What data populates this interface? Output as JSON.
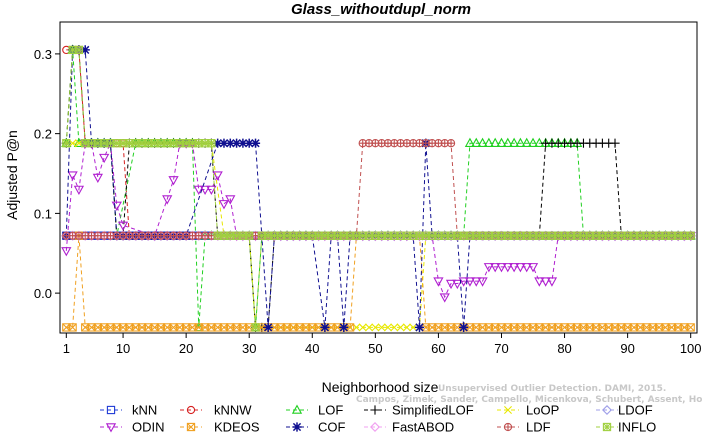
{
  "chart_data": {
    "type": "line",
    "title": "Glass_withoutdupl_norm",
    "xlabel": "Neighborhood size",
    "ylabel": "Adjusted P@n",
    "xlim": [
      0,
      101
    ],
    "ylim": [
      -0.05,
      0.34
    ],
    "xticks": [
      1,
      10,
      20,
      30,
      40,
      50,
      60,
      70,
      80,
      90,
      100
    ],
    "yticks": [
      0.0,
      0.1,
      0.2,
      0.3
    ],
    "ytick_labels": [
      "0.0",
      "0.1",
      "0.2",
      "0.3"
    ],
    "grid": false,
    "legend_position": "bottom",
    "watermark": "Campos, Zimek, Sander, Campello, Micenkova, Schubert, Assent, Houle",
    "watermark_line1": "Unsupervised Outlier Detection. DAMI, 2015.",
    "series": [
      {
        "name": "kNN",
        "color": "#1f3bd6",
        "marker": "square",
        "points": [
          [
            1,
            0.072
          ],
          [
            2,
            0.072
          ],
          [
            3,
            0.072
          ],
          [
            4,
            0.072
          ],
          [
            5,
            0.072
          ],
          [
            6,
            0.072
          ],
          [
            7,
            0.072
          ],
          [
            8,
            0.072
          ],
          [
            9,
            0.072
          ],
          [
            10,
            0.072
          ],
          [
            15,
            0.072
          ],
          [
            20,
            0.072
          ],
          [
            30,
            0.072
          ],
          [
            40,
            0.072
          ],
          [
            50,
            0.072
          ],
          [
            60,
            0.072
          ],
          [
            70,
            0.072
          ],
          [
            80,
            0.072
          ],
          [
            90,
            0.072
          ],
          [
            100,
            0.072
          ]
        ]
      },
      {
        "name": "kNNW",
        "color": "#d62020",
        "marker": "circle",
        "points": [
          [
            1,
            0.305
          ],
          [
            2,
            0.305
          ],
          [
            3,
            0.305
          ],
          [
            4,
            0.188
          ],
          [
            5,
            0.188
          ],
          [
            6,
            0.188
          ],
          [
            7,
            0.188
          ],
          [
            8,
            0.188
          ],
          [
            9,
            0.188
          ],
          [
            10,
            0.188
          ],
          [
            11,
            0.072
          ],
          [
            12,
            0.072
          ],
          [
            20,
            0.072
          ],
          [
            30,
            0.072
          ],
          [
            40,
            0.072
          ],
          [
            50,
            0.072
          ],
          [
            60,
            0.072
          ],
          [
            70,
            0.072
          ],
          [
            80,
            0.072
          ],
          [
            90,
            0.072
          ],
          [
            100,
            0.072
          ]
        ]
      },
      {
        "name": "LOF",
        "color": "#20d020",
        "marker": "triangle",
        "points": [
          [
            1,
            0.188
          ],
          [
            2,
            0.305
          ],
          [
            3,
            0.188
          ],
          [
            4,
            0.188
          ],
          [
            5,
            0.188
          ],
          [
            6,
            0.188
          ],
          [
            7,
            0.188
          ],
          [
            8,
            0.188
          ],
          [
            9,
            0.072
          ],
          [
            12,
            0.188
          ],
          [
            20,
            0.188
          ],
          [
            21,
            0.188
          ],
          [
            22,
            -0.043
          ],
          [
            23,
            0.072
          ],
          [
            30,
            0.072
          ],
          [
            31,
            -0.043
          ],
          [
            32,
            0.072
          ],
          [
            40,
            0.072
          ],
          [
            50,
            0.072
          ],
          [
            60,
            0.072
          ],
          [
            62,
            0.072
          ],
          [
            64,
            0.072
          ],
          [
            65,
            0.188
          ],
          [
            66,
            0.188
          ],
          [
            70,
            0.188
          ],
          [
            75,
            0.188
          ],
          [
            80,
            0.188
          ],
          [
            82,
            0.188
          ],
          [
            83,
            0.072
          ],
          [
            90,
            0.072
          ],
          [
            100,
            0.072
          ]
        ]
      },
      {
        "name": "SimplifiedLOF",
        "color": "#000000",
        "marker": "plus",
        "points": [
          [
            1,
            0.188
          ],
          [
            2,
            0.305
          ],
          [
            3,
            0.305
          ],
          [
            4,
            0.188
          ],
          [
            8,
            0.188
          ],
          [
            9,
            0.072
          ],
          [
            10,
            0.072
          ],
          [
            11,
            0.188
          ],
          [
            20,
            0.188
          ],
          [
            24,
            0.188
          ],
          [
            25,
            0.072
          ],
          [
            30,
            0.072
          ],
          [
            31,
            -0.043
          ],
          [
            32,
            -0.043
          ],
          [
            33,
            -0.043
          ],
          [
            34,
            0.072
          ],
          [
            50,
            0.072
          ],
          [
            60,
            0.072
          ],
          [
            63,
            0.072
          ],
          [
            64,
            0.072
          ],
          [
            66,
            0.072
          ],
          [
            76,
            0.072
          ],
          [
            77,
            0.188
          ],
          [
            88,
            0.188
          ],
          [
            89,
            0.072
          ],
          [
            100,
            0.072
          ]
        ]
      },
      {
        "name": "LoOP",
        "color": "#e8e800",
        "marker": "x",
        "points": [
          [
            1,
            0.188
          ],
          [
            5,
            0.188
          ],
          [
            10,
            0.188
          ],
          [
            20,
            0.188
          ],
          [
            24,
            0.188
          ],
          [
            26,
            0.072
          ],
          [
            30,
            0.072
          ],
          [
            31,
            -0.043
          ],
          [
            32,
            -0.043
          ],
          [
            33,
            -0.043
          ],
          [
            38,
            -0.043
          ],
          [
            40,
            -0.043
          ],
          [
            50,
            -0.043
          ],
          [
            57,
            -0.043
          ],
          [
            58,
            0.072
          ],
          [
            70,
            0.072
          ],
          [
            80,
            0.072
          ],
          [
            90,
            0.072
          ],
          [
            100,
            0.072
          ]
        ]
      },
      {
        "name": "LDOF",
        "color": "#9f9fe8",
        "marker": "diamond",
        "points": [
          [
            1,
            0.072
          ],
          [
            10,
            0.072
          ],
          [
            20,
            0.072
          ],
          [
            30,
            0.072
          ],
          [
            40,
            0.072
          ],
          [
            50,
            0.072
          ],
          [
            60,
            0.072
          ],
          [
            70,
            0.072
          ],
          [
            80,
            0.072
          ],
          [
            90,
            0.072
          ],
          [
            100,
            0.072
          ]
        ]
      },
      {
        "name": "ODIN",
        "color": "#b020d0",
        "marker": "triangle-down",
        "points": [
          [
            1,
            0.053
          ],
          [
            2,
            0.148
          ],
          [
            3,
            0.13
          ],
          [
            4,
            0.188
          ],
          [
            5,
            0.188
          ],
          [
            6,
            0.145
          ],
          [
            7,
            0.17
          ],
          [
            8,
            0.188
          ],
          [
            9,
            0.11
          ],
          [
            10,
            0.085
          ],
          [
            15,
            0.072
          ],
          [
            17,
            0.118
          ],
          [
            18,
            0.142
          ],
          [
            19,
            0.188
          ],
          [
            20,
            0.188
          ],
          [
            21,
            0.188
          ],
          [
            22,
            0.13
          ],
          [
            23,
            0.13
          ],
          [
            24,
            0.13
          ],
          [
            25,
            0.148
          ],
          [
            26,
            0.112
          ],
          [
            27,
            0.118
          ],
          [
            28,
            0.072
          ],
          [
            50,
            0.072
          ],
          [
            59,
            0.072
          ],
          [
            60,
            0.015
          ],
          [
            61,
            -0.005
          ],
          [
            62,
            0.012
          ],
          [
            63,
            0.012
          ],
          [
            64,
            0.015
          ],
          [
            65,
            0.015
          ],
          [
            66,
            0.015
          ],
          [
            67,
            0.015
          ],
          [
            68,
            0.033
          ],
          [
            69,
            0.033
          ],
          [
            70,
            0.033
          ],
          [
            71,
            0.033
          ],
          [
            72,
            0.033
          ],
          [
            73,
            0.033
          ],
          [
            74,
            0.033
          ],
          [
            75,
            0.033
          ],
          [
            76,
            0.015
          ],
          [
            77,
            0.015
          ],
          [
            78,
            0.015
          ],
          [
            79,
            0.072
          ],
          [
            80,
            0.072
          ],
          [
            90,
            0.072
          ],
          [
            100,
            0.072
          ]
        ]
      },
      {
        "name": "KDEOS",
        "color": "#f0a020",
        "marker": "square-x",
        "points": [
          [
            1,
            -0.043
          ],
          [
            2,
            -0.043
          ],
          [
            3,
            0.072
          ],
          [
            4,
            -0.043
          ],
          [
            10,
            -0.043
          ],
          [
            20,
            -0.043
          ],
          [
            30,
            -0.043
          ],
          [
            40,
            -0.043
          ],
          [
            46,
            -0.043
          ],
          [
            47,
            0.072
          ],
          [
            57,
            0.072
          ],
          [
            58,
            -0.043
          ],
          [
            70,
            -0.043
          ],
          [
            80,
            -0.043
          ],
          [
            90,
            -0.043
          ],
          [
            100,
            -0.043
          ]
        ]
      },
      {
        "name": "COF",
        "color": "#101090",
        "marker": "star",
        "points": [
          [
            1,
            0.072
          ],
          [
            2,
            0.305
          ],
          [
            3,
            0.305
          ],
          [
            4,
            0.305
          ],
          [
            5,
            0.188
          ],
          [
            8,
            0.188
          ],
          [
            9,
            0.072
          ],
          [
            20,
            0.072
          ],
          [
            25,
            0.188
          ],
          [
            31,
            0.188
          ],
          [
            32,
            0.072
          ],
          [
            33,
            -0.043
          ],
          [
            34,
            0.072
          ],
          [
            35,
            0.072
          ],
          [
            36,
            0.072
          ],
          [
            40,
            0.072
          ],
          [
            42,
            -0.043
          ],
          [
            43,
            0.072
          ],
          [
            44,
            0.072
          ],
          [
            45,
            -0.043
          ],
          [
            46,
            0.072
          ],
          [
            56,
            0.072
          ],
          [
            57,
            -0.043
          ],
          [
            58,
            0.188
          ],
          [
            59,
            0.072
          ],
          [
            60,
            0.072
          ],
          [
            63,
            0.072
          ],
          [
            64,
            -0.043
          ],
          [
            65,
            0.072
          ],
          [
            70,
            0.072
          ],
          [
            80,
            0.072
          ],
          [
            90,
            0.072
          ],
          [
            100,
            0.072
          ]
        ]
      },
      {
        "name": "FastABOD",
        "color": "#f0a0f0",
        "marker": "diamond",
        "points": [
          [
            1,
            0.072
          ],
          [
            10,
            0.072
          ],
          [
            20,
            0.072
          ],
          [
            30,
            0.072
          ],
          [
            40,
            0.072
          ],
          [
            50,
            0.072
          ],
          [
            60,
            0.072
          ],
          [
            70,
            0.072
          ],
          [
            80,
            0.072
          ],
          [
            90,
            0.072
          ],
          [
            100,
            0.072
          ]
        ]
      },
      {
        "name": "LDF",
        "color": "#c05050",
        "marker": "circle-plus",
        "points": [
          [
            1,
            0.072
          ],
          [
            10,
            0.072
          ],
          [
            20,
            0.072
          ],
          [
            30,
            0.072
          ],
          [
            40,
            0.072
          ],
          [
            47,
            0.072
          ],
          [
            48,
            0.188
          ],
          [
            50,
            0.188
          ],
          [
            55,
            0.188
          ],
          [
            60,
            0.188
          ],
          [
            62,
            0.188
          ],
          [
            63,
            0.072
          ],
          [
            70,
            0.072
          ],
          [
            80,
            0.072
          ],
          [
            90,
            0.072
          ],
          [
            100,
            0.072
          ]
        ]
      },
      {
        "name": "INFLO",
        "color": "#a0d040",
        "marker": "square-star",
        "points": [
          [
            1,
            0.188
          ],
          [
            2,
            0.305
          ],
          [
            3,
            0.305
          ],
          [
            4,
            0.188
          ],
          [
            10,
            0.188
          ],
          [
            20,
            0.188
          ],
          [
            24,
            0.188
          ],
          [
            25,
            0.072
          ],
          [
            30,
            0.072
          ],
          [
            31,
            -0.043
          ],
          [
            32,
            0.072
          ],
          [
            40,
            0.072
          ],
          [
            50,
            0.072
          ],
          [
            60,
            0.072
          ],
          [
            70,
            0.072
          ],
          [
            80,
            0.072
          ],
          [
            90,
            0.072
          ],
          [
            100,
            0.072
          ]
        ]
      }
    ]
  }
}
